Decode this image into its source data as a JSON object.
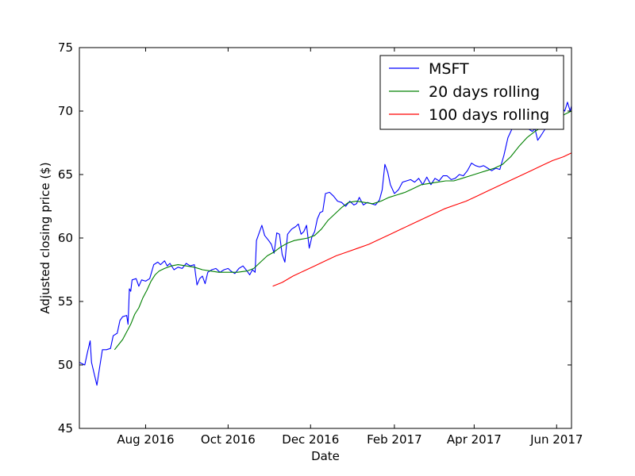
{
  "chart_data": {
    "type": "line",
    "xlabel": "Date",
    "ylabel": "Adjusted closing price ($)",
    "xlim": [
      "2016-06-13",
      "2017-06-12"
    ],
    "ylim": [
      45,
      75
    ],
    "y_ticks": [
      45,
      50,
      55,
      60,
      65,
      70,
      75
    ],
    "x_ticks": [
      {
        "date": "2016-08-01",
        "label": "Aug 2016"
      },
      {
        "date": "2016-10-01",
        "label": "Oct 2016"
      },
      {
        "date": "2016-12-01",
        "label": "Dec 2016"
      },
      {
        "date": "2017-02-01",
        "label": "Feb 2017"
      },
      {
        "date": "2017-04-01",
        "label": "Apr 2017"
      },
      {
        "date": "2017-06-01",
        "label": "Jun 2017"
      }
    ],
    "legend_position": "top-right",
    "grid": false,
    "series": [
      {
        "name": "MSFT",
        "color": "#0000ff",
        "points": [
          [
            "2016-06-13",
            50.2
          ],
          [
            "2016-06-15",
            50.1
          ],
          [
            "2016-06-17",
            50.0
          ],
          [
            "2016-06-19",
            51.0
          ],
          [
            "2016-06-21",
            51.9
          ],
          [
            "2016-06-22",
            50.2
          ],
          [
            "2016-06-24",
            49.3
          ],
          [
            "2016-06-26",
            48.4
          ],
          [
            "2016-06-28",
            49.8
          ],
          [
            "2016-06-30",
            51.2
          ],
          [
            "2016-07-03",
            51.2
          ],
          [
            "2016-07-06",
            51.3
          ],
          [
            "2016-07-08",
            52.3
          ],
          [
            "2016-07-11",
            52.5
          ],
          [
            "2016-07-13",
            53.5
          ],
          [
            "2016-07-15",
            53.8
          ],
          [
            "2016-07-18",
            53.9
          ],
          [
            "2016-07-19",
            53.2
          ],
          [
            "2016-07-20",
            56.0
          ],
          [
            "2016-07-21",
            55.8
          ],
          [
            "2016-07-22",
            56.7
          ],
          [
            "2016-07-25",
            56.8
          ],
          [
            "2016-07-27",
            56.2
          ],
          [
            "2016-07-29",
            56.7
          ],
          [
            "2016-08-01",
            56.6
          ],
          [
            "2016-08-04",
            56.8
          ],
          [
            "2016-08-07",
            57.9
          ],
          [
            "2016-08-10",
            58.1
          ],
          [
            "2016-08-12",
            57.9
          ],
          [
            "2016-08-15",
            58.2
          ],
          [
            "2016-08-17",
            57.8
          ],
          [
            "2016-08-19",
            58.0
          ],
          [
            "2016-08-22",
            57.5
          ],
          [
            "2016-08-25",
            57.7
          ],
          [
            "2016-08-28",
            57.6
          ],
          [
            "2016-08-31",
            58.0
          ],
          [
            "2016-09-03",
            57.8
          ],
          [
            "2016-09-06",
            57.9
          ],
          [
            "2016-09-08",
            56.3
          ],
          [
            "2016-09-10",
            56.8
          ],
          [
            "2016-09-12",
            57.0
          ],
          [
            "2016-09-14",
            56.4
          ],
          [
            "2016-09-16",
            57.3
          ],
          [
            "2016-09-19",
            57.5
          ],
          [
            "2016-09-22",
            57.6
          ],
          [
            "2016-09-25",
            57.3
          ],
          [
            "2016-09-28",
            57.5
          ],
          [
            "2016-10-01",
            57.6
          ],
          [
            "2016-10-03",
            57.4
          ],
          [
            "2016-10-06",
            57.2
          ],
          [
            "2016-10-09",
            57.6
          ],
          [
            "2016-10-12",
            57.8
          ],
          [
            "2016-10-15",
            57.4
          ],
          [
            "2016-10-17",
            57.1
          ],
          [
            "2016-10-19",
            57.5
          ],
          [
            "2016-10-21",
            57.3
          ],
          [
            "2016-10-22",
            59.8
          ],
          [
            "2016-10-24",
            60.4
          ],
          [
            "2016-10-26",
            61.0
          ],
          [
            "2016-10-28",
            60.2
          ],
          [
            "2016-10-31",
            59.8
          ],
          [
            "2016-11-02",
            59.5
          ],
          [
            "2016-11-04",
            58.8
          ],
          [
            "2016-11-06",
            60.4
          ],
          [
            "2016-11-08",
            60.3
          ],
          [
            "2016-11-10",
            58.7
          ],
          [
            "2016-11-12",
            58.1
          ],
          [
            "2016-11-14",
            60.3
          ],
          [
            "2016-11-17",
            60.7
          ],
          [
            "2016-11-20",
            60.9
          ],
          [
            "2016-11-22",
            61.1
          ],
          [
            "2016-11-24",
            60.3
          ],
          [
            "2016-11-26",
            60.5
          ],
          [
            "2016-11-28",
            61.0
          ],
          [
            "2016-11-30",
            59.2
          ],
          [
            "2016-12-02",
            60.1
          ],
          [
            "2016-12-04",
            60.5
          ],
          [
            "2016-12-06",
            61.5
          ],
          [
            "2016-12-08",
            62.0
          ],
          [
            "2016-12-10",
            62.1
          ],
          [
            "2016-12-12",
            63.5
          ],
          [
            "2016-12-15",
            63.6
          ],
          [
            "2016-12-18",
            63.3
          ],
          [
            "2016-12-21",
            62.9
          ],
          [
            "2016-12-24",
            62.8
          ],
          [
            "2016-12-27",
            62.5
          ],
          [
            "2016-12-30",
            62.9
          ],
          [
            "2017-01-02",
            62.6
          ],
          [
            "2017-01-04",
            62.7
          ],
          [
            "2017-01-06",
            63.2
          ],
          [
            "2017-01-09",
            62.6
          ],
          [
            "2017-01-12",
            62.8
          ],
          [
            "2017-01-15",
            62.7
          ],
          [
            "2017-01-18",
            62.6
          ],
          [
            "2017-01-21",
            63.0
          ],
          [
            "2017-01-23",
            63.8
          ],
          [
            "2017-01-25",
            65.8
          ],
          [
            "2017-01-27",
            65.2
          ],
          [
            "2017-01-29",
            64.2
          ],
          [
            "2017-02-01",
            63.5
          ],
          [
            "2017-02-04",
            63.8
          ],
          [
            "2017-02-07",
            64.4
          ],
          [
            "2017-02-10",
            64.5
          ],
          [
            "2017-02-13",
            64.6
          ],
          [
            "2017-02-16",
            64.4
          ],
          [
            "2017-02-19",
            64.7
          ],
          [
            "2017-02-22",
            64.2
          ],
          [
            "2017-02-25",
            64.8
          ],
          [
            "2017-02-28",
            64.2
          ],
          [
            "2017-03-03",
            64.7
          ],
          [
            "2017-03-06",
            64.5
          ],
          [
            "2017-03-09",
            64.9
          ],
          [
            "2017-03-12",
            64.9
          ],
          [
            "2017-03-15",
            64.6
          ],
          [
            "2017-03-18",
            64.7
          ],
          [
            "2017-03-21",
            65.0
          ],
          [
            "2017-03-24",
            64.9
          ],
          [
            "2017-03-27",
            65.3
          ],
          [
            "2017-03-30",
            65.9
          ],
          [
            "2017-04-02",
            65.7
          ],
          [
            "2017-04-05",
            65.6
          ],
          [
            "2017-04-08",
            65.7
          ],
          [
            "2017-04-11",
            65.5
          ],
          [
            "2017-04-14",
            65.3
          ],
          [
            "2017-04-17",
            65.5
          ],
          [
            "2017-04-20",
            65.4
          ],
          [
            "2017-04-23",
            66.5
          ],
          [
            "2017-04-26",
            67.9
          ],
          [
            "2017-04-29",
            68.6
          ],
          [
            "2017-05-02",
            69.2
          ],
          [
            "2017-05-05",
            68.8
          ],
          [
            "2017-05-08",
            68.9
          ],
          [
            "2017-05-11",
            68.6
          ],
          [
            "2017-05-14",
            68.4
          ],
          [
            "2017-05-16",
            68.6
          ],
          [
            "2017-05-18",
            67.7
          ],
          [
            "2017-05-20",
            68.0
          ],
          [
            "2017-05-23",
            68.5
          ],
          [
            "2017-05-26",
            69.0
          ],
          [
            "2017-05-29",
            69.5
          ],
          [
            "2017-06-01",
            70.3
          ],
          [
            "2017-06-03",
            70.1
          ],
          [
            "2017-06-05",
            70.2
          ],
          [
            "2017-06-07",
            70.0
          ],
          [
            "2017-06-09",
            70.7
          ],
          [
            "2017-06-11",
            70.0
          ],
          [
            "2017-06-12",
            70.4
          ]
        ]
      },
      {
        "name": "20 days rolling",
        "color": "#008000",
        "points": [
          [
            "2016-07-09",
            51.2
          ],
          [
            "2016-07-12",
            51.6
          ],
          [
            "2016-07-15",
            52.0
          ],
          [
            "2016-07-18",
            52.6
          ],
          [
            "2016-07-21",
            53.2
          ],
          [
            "2016-07-24",
            54.0
          ],
          [
            "2016-07-27",
            54.5
          ],
          [
            "2016-07-30",
            55.3
          ],
          [
            "2016-08-02",
            55.9
          ],
          [
            "2016-08-05",
            56.6
          ],
          [
            "2016-08-08",
            57.1
          ],
          [
            "2016-08-11",
            57.4
          ],
          [
            "2016-08-15",
            57.6
          ],
          [
            "2016-08-20",
            57.8
          ],
          [
            "2016-08-25",
            57.9
          ],
          [
            "2016-08-31",
            57.8
          ],
          [
            "2016-09-06",
            57.7
          ],
          [
            "2016-09-12",
            57.5
          ],
          [
            "2016-09-18",
            57.4
          ],
          [
            "2016-09-24",
            57.3
          ],
          [
            "2016-10-01",
            57.3
          ],
          [
            "2016-10-08",
            57.3
          ],
          [
            "2016-10-15",
            57.4
          ],
          [
            "2016-10-20",
            57.6
          ],
          [
            "2016-10-25",
            58.1
          ],
          [
            "2016-10-30",
            58.6
          ],
          [
            "2016-11-04",
            58.9
          ],
          [
            "2016-11-09",
            59.3
          ],
          [
            "2016-11-14",
            59.6
          ],
          [
            "2016-11-19",
            59.8
          ],
          [
            "2016-11-24",
            59.9
          ],
          [
            "2016-11-29",
            60.0
          ],
          [
            "2016-12-04",
            60.2
          ],
          [
            "2016-12-09",
            60.7
          ],
          [
            "2016-12-14",
            61.4
          ],
          [
            "2016-12-19",
            61.9
          ],
          [
            "2016-12-24",
            62.4
          ],
          [
            "2016-12-29",
            62.8
          ],
          [
            "2017-01-04",
            62.9
          ],
          [
            "2017-01-10",
            62.8
          ],
          [
            "2017-01-16",
            62.7
          ],
          [
            "2017-01-22",
            62.9
          ],
          [
            "2017-01-28",
            63.2
          ],
          [
            "2017-02-03",
            63.4
          ],
          [
            "2017-02-09",
            63.6
          ],
          [
            "2017-02-15",
            63.9
          ],
          [
            "2017-02-21",
            64.2
          ],
          [
            "2017-02-27",
            64.3
          ],
          [
            "2017-03-05",
            64.4
          ],
          [
            "2017-03-11",
            64.5
          ],
          [
            "2017-03-17",
            64.5
          ],
          [
            "2017-03-23",
            64.7
          ],
          [
            "2017-03-29",
            64.9
          ],
          [
            "2017-04-04",
            65.1
          ],
          [
            "2017-04-10",
            65.3
          ],
          [
            "2017-04-16",
            65.5
          ],
          [
            "2017-04-22",
            65.8
          ],
          [
            "2017-04-28",
            66.4
          ],
          [
            "2017-05-04",
            67.2
          ],
          [
            "2017-05-10",
            67.9
          ],
          [
            "2017-05-16",
            68.4
          ],
          [
            "2017-05-22",
            68.8
          ],
          [
            "2017-05-28",
            69.1
          ],
          [
            "2017-06-03",
            69.5
          ],
          [
            "2017-06-08",
            69.8
          ],
          [
            "2017-06-12",
            70.0
          ]
        ]
      },
      {
        "name": "100 days rolling",
        "color": "#ff0000",
        "points": [
          [
            "2016-11-03",
            56.2
          ],
          [
            "2016-11-10",
            56.5
          ],
          [
            "2016-11-18",
            57.0
          ],
          [
            "2016-11-26",
            57.4
          ],
          [
            "2016-12-04",
            57.8
          ],
          [
            "2016-12-12",
            58.2
          ],
          [
            "2016-12-20",
            58.6
          ],
          [
            "2016-12-28",
            58.9
          ],
          [
            "2017-01-05",
            59.2
          ],
          [
            "2017-01-13",
            59.5
          ],
          [
            "2017-01-21",
            59.9
          ],
          [
            "2017-01-29",
            60.3
          ],
          [
            "2017-02-06",
            60.7
          ],
          [
            "2017-02-14",
            61.1
          ],
          [
            "2017-02-22",
            61.5
          ],
          [
            "2017-03-02",
            61.9
          ],
          [
            "2017-03-10",
            62.3
          ],
          [
            "2017-03-18",
            62.6
          ],
          [
            "2017-03-26",
            62.9
          ],
          [
            "2017-04-03",
            63.3
          ],
          [
            "2017-04-11",
            63.7
          ],
          [
            "2017-04-19",
            64.1
          ],
          [
            "2017-04-27",
            64.5
          ],
          [
            "2017-05-05",
            64.9
          ],
          [
            "2017-05-13",
            65.3
          ],
          [
            "2017-05-21",
            65.7
          ],
          [
            "2017-05-29",
            66.1
          ],
          [
            "2017-06-06",
            66.4
          ],
          [
            "2017-06-12",
            66.7
          ]
        ]
      }
    ]
  }
}
